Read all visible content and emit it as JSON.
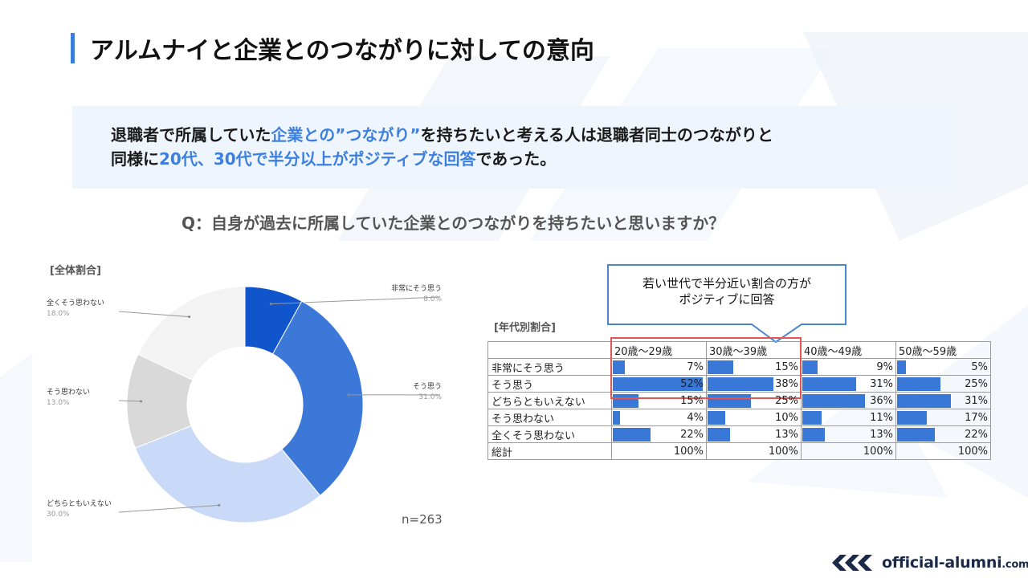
{
  "title": "アルムナイと企業とのつながりに対しての意向",
  "summary": {
    "line1": [
      {
        "text": "退職者で所属していた",
        "hl": false
      },
      {
        "text": "企業との”つながり”",
        "hl": true
      },
      {
        "text": "を持ちたいと考える人は退職者同士のつながりと",
        "hl": false
      }
    ],
    "line2": [
      {
        "text": "同様に",
        "hl": false
      },
      {
        "text": "20代、30代で半分以上がポジティブな回答",
        "hl": true
      },
      {
        "text": "であった。",
        "hl": false
      }
    ]
  },
  "question": "Q：自身が過去に所属していた企業とのつながりを持ちたいと思いますか？",
  "colors": {
    "accent": "#3d7fe0",
    "highlight_frame": "#e05555",
    "bar": "#3a78d8"
  },
  "chart_data": [
    {
      "type": "pie",
      "title": "[全体割合]",
      "donut": true,
      "categories": [
        "非常にそう思う",
        "そう思う",
        "どちらともいえない",
        "そう思わない",
        "全くそう思わない"
      ],
      "values": [
        8.0,
        31.0,
        30.0,
        13.0,
        18.0
      ],
      "value_labels": [
        "8.0%",
        "31.0%",
        "30.0%",
        "13.0%",
        "18.0%"
      ],
      "colors": [
        "#1155cc",
        "#3c78d8",
        "#c9daf8",
        "#d9d9d9",
        "#f3f3f3"
      ],
      "note": "n=263"
    },
    {
      "type": "table",
      "title": "[年代別割合]",
      "columns": [
        "20歳〜29歳",
        "30歳〜39歳",
        "40歳〜49歳",
        "50歳〜59歳"
      ],
      "rows": [
        {
          "label": "非常にそう思う",
          "values": [
            7,
            15,
            9,
            5
          ],
          "labels": [
            "7%",
            "15%",
            "9%",
            "5%"
          ]
        },
        {
          "label": "そう思う",
          "values": [
            52,
            38,
            31,
            25
          ],
          "labels": [
            "52%",
            "38%",
            "31%",
            "25%"
          ]
        },
        {
          "label": "どちらともいえない",
          "values": [
            15,
            25,
            36,
            31
          ],
          "labels": [
            "15%",
            "25%",
            "36%",
            "31%"
          ]
        },
        {
          "label": "そう思わない",
          "values": [
            4,
            10,
            11,
            17
          ],
          "labels": [
            "4%",
            "10%",
            "11%",
            "17%"
          ]
        },
        {
          "label": "全くそう思わない",
          "values": [
            22,
            13,
            13,
            22
          ],
          "labels": [
            "22%",
            "13%",
            "13%",
            "22%"
          ]
        }
      ],
      "total": {
        "label": "総計",
        "labels": [
          "100%",
          "100%",
          "100%",
          "100%"
        ]
      },
      "bar_max": 52
    }
  ],
  "callout": {
    "line1": "若い世代で半分近い割合の方が",
    "line2": "ポジティブに回答"
  },
  "logo": {
    "name": "official-alumni",
    "suffix": ".com"
  }
}
